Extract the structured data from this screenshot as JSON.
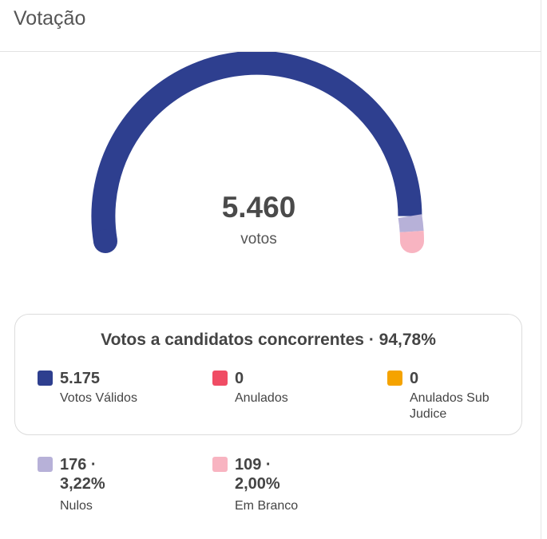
{
  "header": {
    "title": "Votação"
  },
  "gauge": {
    "total": "5.460",
    "unit": "votos",
    "segments": [
      {
        "name": "valid",
        "value": 5175,
        "color": "#2e3f8f"
      },
      {
        "name": "nulos",
        "value": 176,
        "color": "#b7b1d8"
      },
      {
        "name": "branco",
        "value": 109,
        "color": "#f8b4c1"
      }
    ]
  },
  "competing": {
    "title": "Votos a candidatos concorrentes · 94,78%",
    "items": [
      {
        "value": "5.175",
        "label": "Votos Válidos",
        "color": "#2e3f8f"
      },
      {
        "value": "0",
        "label": "Anulados",
        "color": "#f04c64"
      },
      {
        "value": "0",
        "label": "Anulados Sub Judice",
        "color": "#f5a300"
      }
    ]
  },
  "other": {
    "items": [
      {
        "value": "176 · 3,22%",
        "label": "Nulos",
        "color": "#b7b1d8"
      },
      {
        "value": "109 · 2,00%",
        "label": "Em Branco",
        "color": "#f8b4c1"
      }
    ]
  }
}
